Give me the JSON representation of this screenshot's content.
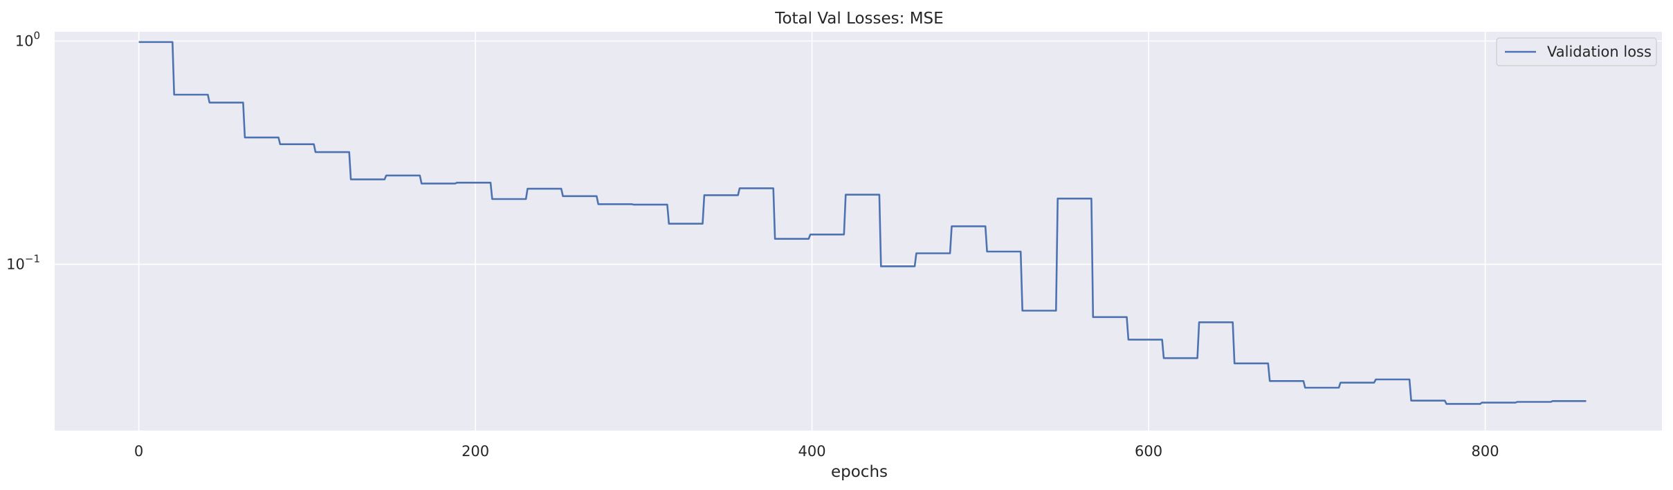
{
  "chart_data": {
    "type": "line",
    "title": "Total Val Losses:  MSE",
    "xlabel": "epochs",
    "ylabel": "",
    "yscale": "log",
    "xlim": [
      -50,
      905
    ],
    "ylim": [
      0.018,
      1.1
    ],
    "xticks": [
      0,
      200,
      400,
      600,
      800
    ],
    "xtick_labels": [
      "0",
      "200",
      "400",
      "600",
      "800"
    ],
    "yticks": [
      0.1,
      1
    ],
    "ytick_labels": [
      {
        "base": "10",
        "exp": "−1"
      },
      {
        "base": "10",
        "exp": "0"
      }
    ],
    "grid": true,
    "legend_position": "top-right",
    "colors": {
      "line": "#4c72b0",
      "background": "#eaeaf2",
      "grid": "#ffffff"
    },
    "series": [
      {
        "name": "Validation loss",
        "x": [
          0,
          20,
          21,
          41,
          42,
          62,
          63,
          83,
          84,
          104,
          105,
          125,
          126,
          146,
          147,
          167,
          168,
          188,
          189,
          209,
          210,
          230,
          231,
          251,
          252,
          272,
          273,
          293,
          294,
          314,
          315,
          335,
          336,
          356,
          357,
          377,
          378,
          398,
          399,
          419,
          420,
          440,
          441,
          461,
          462,
          482,
          483,
          503,
          504,
          524,
          525,
          545,
          546,
          566,
          567,
          587,
          588,
          608,
          609,
          629,
          630,
          650,
          651,
          671,
          672,
          692,
          693,
          713,
          714,
          734,
          735,
          755,
          756,
          776,
          777,
          797,
          798,
          818,
          819,
          839,
          840,
          860
        ],
        "y": [
          0.99,
          0.99,
          0.575,
          0.575,
          0.53,
          0.53,
          0.37,
          0.37,
          0.345,
          0.345,
          0.318,
          0.318,
          0.24,
          0.24,
          0.25,
          0.25,
          0.23,
          0.23,
          0.232,
          0.232,
          0.196,
          0.196,
          0.218,
          0.218,
          0.202,
          0.202,
          0.186,
          0.186,
          0.185,
          0.185,
          0.152,
          0.152,
          0.204,
          0.204,
          0.219,
          0.219,
          0.13,
          0.13,
          0.136,
          0.136,
          0.205,
          0.205,
          0.098,
          0.098,
          0.112,
          0.112,
          0.148,
          0.148,
          0.114,
          0.114,
          0.062,
          0.062,
          0.197,
          0.197,
          0.058,
          0.058,
          0.046,
          0.046,
          0.038,
          0.038,
          0.055,
          0.055,
          0.036,
          0.036,
          0.03,
          0.03,
          0.028,
          0.028,
          0.0295,
          0.0295,
          0.0305,
          0.0305,
          0.0245,
          0.0245,
          0.0237,
          0.0237,
          0.024,
          0.024,
          0.0242,
          0.0242,
          0.0244,
          0.0244
        ]
      }
    ]
  }
}
